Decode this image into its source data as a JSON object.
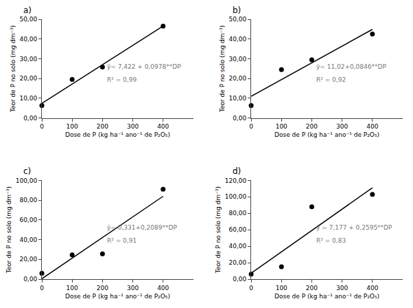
{
  "chart_data": [
    {
      "type": "scatter",
      "title": "a)",
      "x_label": "Dose de P (kg ha⁻¹ ano⁻¹ de P₂O₅)",
      "y_label": "Teor de P no solo (mg dm⁻³)",
      "series": [
        {
          "type": "scatter",
          "marker": "circle",
          "color": "#000000",
          "x": [
            0,
            100,
            200,
            400
          ],
          "values": [
            6.3,
            19.5,
            25.8,
            46.5
          ]
        },
        {
          "type": "line",
          "line_style": "solid",
          "color": "#000000",
          "x": [
            0,
            400
          ],
          "values": [
            7.422,
            46.542
          ]
        }
      ],
      "annotations": [
        {
          "text": "ŷ= 7,422 + 0,0978**DP",
          "color": "#777777"
        },
        {
          "text": "R² = 0,99",
          "color": "#777777"
        }
      ],
      "xlim": [
        0,
        500
      ],
      "xticks": [
        0,
        100,
        200,
        300,
        400
      ],
      "ylim": [
        0,
        50
      ],
      "yticks": [
        {
          "value": 0,
          "label": "0,00"
        },
        {
          "value": 10,
          "label": "10,00"
        },
        {
          "value": 20,
          "label": "20,00"
        },
        {
          "value": 30,
          "label": "30,00"
        },
        {
          "value": 40,
          "label": "40,00"
        },
        {
          "value": 50,
          "label": "50,00"
        }
      ],
      "grid": false
    },
    {
      "type": "scatter",
      "title": "b)",
      "x_label": "Dose de P (kg ha⁻¹ ano⁻¹ de P₂O₅)",
      "y_label": "Teor de P no solo (mg dm⁻³)",
      "series": [
        {
          "type": "scatter",
          "marker": "circle",
          "color": "#000000",
          "x": [
            0,
            100,
            200,
            400
          ],
          "values": [
            6.3,
            24.5,
            29.5,
            42.5
          ]
        },
        {
          "type": "line",
          "line_style": "solid",
          "color": "#000000",
          "x": [
            0,
            400
          ],
          "values": [
            11.02,
            44.86
          ]
        }
      ],
      "annotations": [
        {
          "text": "ŷ= 11,02+0,0846**DP",
          "color": "#777777"
        },
        {
          "text": "R² = 0,92",
          "color": "#777777"
        }
      ],
      "xlim": [
        0,
        500
      ],
      "xticks": [
        0,
        100,
        200,
        300,
        400
      ],
      "ylim": [
        0,
        50
      ],
      "yticks": [
        {
          "value": 0,
          "label": "0,00"
        },
        {
          "value": 10,
          "label": "10,00"
        },
        {
          "value": 20,
          "label": "20,00"
        },
        {
          "value": 30,
          "label": "30,00"
        },
        {
          "value": 40,
          "label": "40,00"
        },
        {
          "value": 50,
          "label": "50,00"
        }
      ],
      "grid": false
    },
    {
      "type": "scatter",
      "title": "c)",
      "x_label": "Dose de P (kg ha⁻¹ ano⁻¹ de P₂O₅)",
      "y_label": "Teor de P no solo (mg dm⁻³)",
      "series": [
        {
          "type": "scatter",
          "marker": "circle",
          "color": "#000000",
          "x": [
            0,
            100,
            200,
            400
          ],
          "values": [
            6.0,
            24.5,
            25.5,
            91.0
          ]
        },
        {
          "type": "line",
          "line_style": "solid",
          "color": "#000000",
          "x": [
            0,
            400
          ],
          "values": [
            0.331,
            83.891
          ]
        }
      ],
      "annotations": [
        {
          "text": "ŷ= 0,331+0,2089**DP",
          "color": "#777777"
        },
        {
          "text": "R² = 0,91",
          "color": "#777777"
        }
      ],
      "xlim": [
        0,
        500
      ],
      "xticks": [
        0,
        100,
        200,
        300,
        400
      ],
      "ylim": [
        0,
        100
      ],
      "yticks": [
        {
          "value": 0,
          "label": "0,00"
        },
        {
          "value": 20,
          "label": "20,00"
        },
        {
          "value": 40,
          "label": "40,00"
        },
        {
          "value": 60,
          "label": "60,00"
        },
        {
          "value": 80,
          "label": "80,00"
        },
        {
          "value": 100,
          "label": "100,00"
        }
      ],
      "grid": false
    },
    {
      "type": "scatter",
      "title": "d)",
      "x_label": "Dose de P (kg ha⁻¹ ano⁻¹ de P₂O₅)",
      "y_label": "Teor de P no solo (mg dm⁻³)",
      "series": [
        {
          "type": "scatter",
          "marker": "circle",
          "color": "#000000",
          "x": [
            0,
            100,
            200,
            400
          ],
          "values": [
            6.0,
            15.0,
            88.0,
            103.0
          ]
        },
        {
          "type": "line",
          "line_style": "solid",
          "color": "#000000",
          "x": [
            0,
            400
          ],
          "values": [
            7.177,
            110.977
          ]
        }
      ],
      "annotations": [
        {
          "text": "ŷ = 7,177 + 0,2595**DP",
          "color": "#777777"
        },
        {
          "text": "R² = 0,83",
          "color": "#777777"
        }
      ],
      "xlim": [
        0,
        500
      ],
      "xticks": [
        0,
        100,
        200,
        300,
        400
      ],
      "ylim": [
        0,
        120
      ],
      "yticks": [
        {
          "value": 0,
          "label": "0,00"
        },
        {
          "value": 20,
          "label": "20,00"
        },
        {
          "value": 40,
          "label": "40,00"
        },
        {
          "value": 60,
          "label": "60,00"
        },
        {
          "value": 80,
          "label": "80,00"
        },
        {
          "value": 100,
          "label": "100,00"
        },
        {
          "value": 120,
          "label": "120,00"
        }
      ],
      "grid": false
    }
  ]
}
